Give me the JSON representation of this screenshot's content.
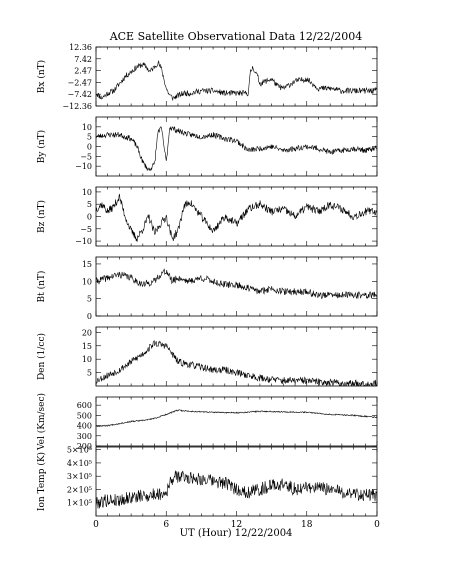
{
  "title": "ACE Satellite Observational Data   12/22/2004",
  "xlabel": "UT (Hour)   12/22/2004",
  "x_ticks": [
    "0",
    "6",
    "12",
    "18",
    "0"
  ],
  "x_tick_values": [
    0,
    6,
    12,
    18,
    24
  ],
  "chart_data": [
    {
      "type": "line",
      "name": "bx",
      "ylabel": "Bx (nT)",
      "ylim": [
        -12.36,
        12.36
      ],
      "yticks": [
        -12.36,
        -7.42,
        -2.47,
        2.47,
        7.42,
        12.36
      ],
      "ytick_labels": [
        "−12.36",
        "−7.42",
        "−2.47",
        "2.47",
        "7.42",
        "12.36"
      ],
      "noise": 1.2,
      "seed": 11,
      "x": [
        0,
        0.5,
        1,
        1.5,
        2,
        2.5,
        3,
        3.5,
        4,
        4.3,
        4.6,
        5,
        5.3,
        5.6,
        6,
        6.3,
        6.6,
        7,
        7.5,
        8,
        9,
        10,
        11,
        12,
        13,
        13.2,
        13.4,
        13.8,
        14,
        14.5,
        15,
        15.5,
        16,
        17,
        18,
        18.5,
        19,
        20,
        21,
        22,
        23,
        24
      ],
      "y": [
        -7,
        -9,
        -7,
        -6,
        -3,
        0,
        2,
        4,
        5,
        4,
        2,
        4,
        6,
        3,
        -5,
        -8,
        -9,
        -8,
        -7,
        -7,
        -6,
        -6,
        -7,
        -7,
        -7,
        2,
        4,
        0,
        -3,
        -2,
        -1,
        -4,
        -5,
        -2,
        -1,
        -3,
        -5,
        -5,
        -6,
        -6,
        -6,
        -6
      ]
    },
    {
      "type": "line",
      "name": "by",
      "ylabel": "By (nT)",
      "ylim": [
        -15,
        15
      ],
      "yticks": [
        -10,
        -5,
        0,
        5,
        10
      ],
      "ytick_labels": [
        "−10",
        "−5",
        "0",
        "5",
        "10"
      ],
      "noise": 1.4,
      "seed": 23,
      "x": [
        0,
        1,
        2,
        3,
        3.5,
        4,
        4.5,
        5,
        5.3,
        5.6,
        6,
        6.3,
        6.6,
        7,
        8,
        9,
        10,
        11,
        12,
        13,
        14,
        15,
        16,
        17,
        18,
        19,
        20,
        21,
        22,
        23,
        24
      ],
      "y": [
        5,
        6,
        6,
        4,
        0,
        -8,
        -12,
        -9,
        8,
        9,
        -8,
        10,
        9,
        8,
        6,
        5,
        6,
        4,
        3,
        -2,
        -1,
        0,
        -2,
        -1,
        0,
        -1,
        -3,
        -2,
        -1,
        -2,
        -1
      ]
    },
    {
      "type": "line",
      "name": "bz",
      "ylabel": "Bz (nT)",
      "ylim": [
        -12,
        12
      ],
      "yticks": [
        -10,
        -5,
        0,
        5,
        10
      ],
      "ytick_labels": [
        "−10",
        "−5",
        "0",
        "5",
        "10"
      ],
      "noise": 1.6,
      "seed": 37,
      "x": [
        0,
        0.5,
        1,
        1.5,
        2,
        2.5,
        3,
        3.5,
        4,
        4.5,
        5,
        5.5,
        6,
        6.5,
        7,
        7.5,
        8,
        9,
        10,
        11,
        12,
        13,
        14,
        15,
        16,
        17,
        18,
        19,
        20,
        21,
        22,
        23,
        24
      ],
      "y": [
        3,
        5,
        2,
        4,
        8,
        0,
        -6,
        -9,
        -5,
        0,
        -7,
        -3,
        0,
        -9,
        -6,
        4,
        6,
        0,
        -6,
        0,
        -3,
        3,
        5,
        2,
        3,
        0,
        4,
        2,
        5,
        3,
        0,
        2,
        2
      ]
    },
    {
      "type": "line",
      "name": "bt",
      "ylabel": "Bt (nT)",
      "ylim": [
        0,
        17
      ],
      "yticks": [
        0,
        5,
        10,
        15
      ],
      "ytick_labels": [
        "0",
        "5",
        "10",
        "15"
      ],
      "noise": 1.0,
      "seed": 41,
      "x": [
        0,
        1,
        2,
        3,
        4,
        5,
        5.5,
        6,
        6.5,
        7,
        8,
        9,
        10,
        11,
        12,
        13,
        14,
        15,
        16,
        17,
        18,
        19,
        20,
        21,
        22,
        23,
        24
      ],
      "y": [
        10,
        11,
        12,
        11,
        9,
        10,
        12,
        13,
        10,
        11,
        10,
        11,
        10,
        9,
        9,
        8,
        7,
        8,
        7,
        7,
        7,
        6,
        6,
        6,
        6,
        6,
        6
      ]
    },
    {
      "type": "line",
      "name": "density",
      "ylabel": "Den (1/cc)",
      "ylim": [
        0,
        22
      ],
      "yticks": [
        5,
        10,
        15,
        20
      ],
      "ytick_labels": [
        "5",
        "10",
        "15",
        "20"
      ],
      "noise": 1.3,
      "seed": 53,
      "x": [
        0,
        0.5,
        1,
        1.5,
        2,
        3,
        4,
        4.5,
        5,
        6,
        6.5,
        7,
        8,
        9,
        10,
        11,
        12,
        13,
        14,
        15,
        16,
        17,
        18,
        19,
        20,
        21,
        22,
        23,
        24
      ],
      "y": [
        2,
        3,
        4,
        5,
        6,
        9,
        12,
        14,
        16,
        15,
        12,
        9,
        8,
        7,
        6,
        6,
        5,
        4,
        3,
        2.5,
        2,
        2,
        2,
        1.5,
        1.5,
        1,
        1,
        1,
        1
      ]
    },
    {
      "type": "line",
      "name": "velocity",
      "ylabel": "Vel (Km/sec)",
      "ylim": [
        200,
        680
      ],
      "yticks": [
        200,
        300,
        400,
        500,
        600
      ],
      "ytick_labels": [
        "200",
        "300",
        "400",
        "500",
        "600"
      ],
      "noise": 6,
      "seed": 67,
      "x": [
        0,
        1,
        2,
        3,
        4,
        5,
        6,
        7,
        8,
        10,
        12,
        14,
        16,
        18,
        20,
        22,
        24
      ],
      "y": [
        395,
        400,
        420,
        440,
        450,
        470,
        510,
        550,
        540,
        530,
        525,
        540,
        535,
        530,
        510,
        500,
        480
      ]
    },
    {
      "type": "line",
      "name": "temperature",
      "ylabel": "Ion Temp (K)",
      "ylim": [
        0,
        520000
      ],
      "yticks": [
        100000,
        200000,
        300000,
        400000,
        500000
      ],
      "ytick_labels": [
        "1×10⁵",
        "2×10⁵",
        "3×10⁵",
        "4×10⁵",
        "5×10⁵"
      ],
      "noise": 50000,
      "seed": 79,
      "x": [
        0,
        1,
        2,
        3,
        4,
        5,
        6,
        6.5,
        7,
        8,
        9,
        10,
        11,
        12,
        13,
        14,
        15,
        16,
        17,
        18,
        19,
        20,
        21,
        22,
        23,
        24
      ],
      "y": [
        100000,
        120000,
        120000,
        140000,
        150000,
        160000,
        180000,
        280000,
        300000,
        290000,
        280000,
        260000,
        250000,
        200000,
        180000,
        200000,
        230000,
        240000,
        200000,
        220000,
        210000,
        200000,
        180000,
        170000,
        160000,
        150000
      ]
    }
  ]
}
